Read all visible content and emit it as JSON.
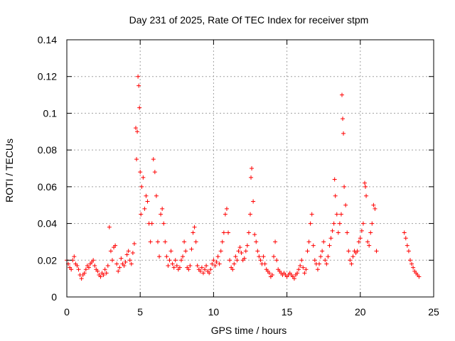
{
  "chart_data": {
    "type": "scatter",
    "title": "Day 231 of 2025, Rate Of TEC Index for receiver stpm",
    "xlabel": "GPS time / hours",
    "ylabel": "ROTI / TECUs",
    "xlim": [
      0,
      25
    ],
    "ylim": [
      0,
      0.14
    ],
    "xticks": [
      0,
      5,
      10,
      15,
      20,
      25
    ],
    "yticks": [
      0,
      0.02,
      0.04,
      0.06,
      0.08,
      0.1,
      0.12,
      0.14
    ],
    "xtick_labels": [
      "0",
      "5",
      "10",
      "15",
      "20",
      "25"
    ],
    "ytick_labels": [
      "0",
      "0.02",
      "0.04",
      "0.06",
      "0.08",
      "0.1",
      "0.12",
      "0.14"
    ],
    "grid": true,
    "marker": "plus",
    "color": "#ff0000",
    "series": [
      {
        "values_xy": [
          [
            0.0,
            0.02
          ],
          [
            0.1,
            0.018
          ],
          [
            0.2,
            0.016
          ],
          [
            0.3,
            0.015
          ],
          [
            0.4,
            0.02
          ],
          [
            0.5,
            0.022
          ],
          [
            0.6,
            0.018
          ],
          [
            0.7,
            0.017
          ],
          [
            0.8,
            0.015
          ],
          [
            0.9,
            0.012
          ],
          [
            1.0,
            0.01
          ],
          [
            1.1,
            0.012
          ],
          [
            1.2,
            0.013
          ],
          [
            1.3,
            0.015
          ],
          [
            1.4,
            0.017
          ],
          [
            1.5,
            0.016
          ],
          [
            1.6,
            0.018
          ],
          [
            1.7,
            0.019
          ],
          [
            1.8,
            0.02
          ],
          [
            1.9,
            0.017
          ],
          [
            2.0,
            0.015
          ],
          [
            2.1,
            0.014
          ],
          [
            2.2,
            0.012
          ],
          [
            2.3,
            0.011
          ],
          [
            2.4,
            0.013
          ],
          [
            2.5,
            0.012
          ],
          [
            2.6,
            0.015
          ],
          [
            2.7,
            0.013
          ],
          [
            2.8,
            0.017
          ],
          [
            2.9,
            0.038
          ],
          [
            3.0,
            0.025
          ],
          [
            3.1,
            0.02
          ],
          [
            3.2,
            0.027
          ],
          [
            3.3,
            0.028
          ],
          [
            3.4,
            0.018
          ],
          [
            3.5,
            0.014
          ],
          [
            3.6,
            0.016
          ],
          [
            3.7,
            0.021
          ],
          [
            3.8,
            0.018
          ],
          [
            3.9,
            0.017
          ],
          [
            4.0,
            0.019
          ],
          [
            4.1,
            0.023
          ],
          [
            4.2,
            0.025
          ],
          [
            4.3,
            0.02
          ],
          [
            4.4,
            0.018
          ],
          [
            4.5,
            0.024
          ],
          [
            4.6,
            0.029
          ],
          [
            4.7,
            0.092
          ],
          [
            4.75,
            0.075
          ],
          [
            4.8,
            0.09
          ],
          [
            4.85,
            0.12
          ],
          [
            4.9,
            0.115
          ],
          [
            4.95,
            0.103
          ],
          [
            5.0,
            0.068
          ],
          [
            5.05,
            0.045
          ],
          [
            5.1,
            0.06
          ],
          [
            5.2,
            0.065
          ],
          [
            5.3,
            0.048
          ],
          [
            5.4,
            0.055
          ],
          [
            5.5,
            0.052
          ],
          [
            5.6,
            0.04
          ],
          [
            5.7,
            0.03
          ],
          [
            5.8,
            0.04
          ],
          [
            5.9,
            0.075
          ],
          [
            6.0,
            0.068
          ],
          [
            6.1,
            0.055
          ],
          [
            6.2,
            0.03
          ],
          [
            6.3,
            0.022
          ],
          [
            6.4,
            0.045
          ],
          [
            6.5,
            0.048
          ],
          [
            6.6,
            0.04
          ],
          [
            6.7,
            0.03
          ],
          [
            6.8,
            0.022
          ],
          [
            6.9,
            0.017
          ],
          [
            7.0,
            0.02
          ],
          [
            7.1,
            0.025
          ],
          [
            7.2,
            0.018
          ],
          [
            7.3,
            0.016
          ],
          [
            7.4,
            0.02
          ],
          [
            7.5,
            0.017
          ],
          [
            7.6,
            0.015
          ],
          [
            7.7,
            0.016
          ],
          [
            7.8,
            0.02
          ],
          [
            7.9,
            0.022
          ],
          [
            8.0,
            0.03
          ],
          [
            8.1,
            0.025
          ],
          [
            8.2,
            0.016
          ],
          [
            8.3,
            0.015
          ],
          [
            8.4,
            0.017
          ],
          [
            8.5,
            0.026
          ],
          [
            8.6,
            0.035
          ],
          [
            8.7,
            0.038
          ],
          [
            8.8,
            0.03
          ],
          [
            8.9,
            0.017
          ],
          [
            9.0,
            0.015
          ],
          [
            9.1,
            0.014
          ],
          [
            9.2,
            0.016
          ],
          [
            9.3,
            0.013
          ],
          [
            9.4,
            0.015
          ],
          [
            9.5,
            0.017
          ],
          [
            9.6,
            0.014
          ],
          [
            9.7,
            0.013
          ],
          [
            9.8,
            0.015
          ],
          [
            9.9,
            0.018
          ],
          [
            10.0,
            0.02
          ],
          [
            10.1,
            0.017
          ],
          [
            10.2,
            0.019
          ],
          [
            10.3,
            0.022
          ],
          [
            10.4,
            0.018
          ],
          [
            10.5,
            0.025
          ],
          [
            10.6,
            0.03
          ],
          [
            10.7,
            0.035
          ],
          [
            10.8,
            0.045
          ],
          [
            10.9,
            0.048
          ],
          [
            11.0,
            0.035
          ],
          [
            11.1,
            0.02
          ],
          [
            11.2,
            0.016
          ],
          [
            11.3,
            0.015
          ],
          [
            11.4,
            0.018
          ],
          [
            11.5,
            0.022
          ],
          [
            11.6,
            0.02
          ],
          [
            11.7,
            0.025
          ],
          [
            11.8,
            0.027
          ],
          [
            11.9,
            0.024
          ],
          [
            12.0,
            0.02
          ],
          [
            12.1,
            0.021
          ],
          [
            12.2,
            0.025
          ],
          [
            12.3,
            0.028
          ],
          [
            12.4,
            0.035
          ],
          [
            12.5,
            0.045
          ],
          [
            12.55,
            0.065
          ],
          [
            12.6,
            0.07
          ],
          [
            12.7,
            0.052
          ],
          [
            12.8,
            0.034
          ],
          [
            12.9,
            0.03
          ],
          [
            13.0,
            0.025
          ],
          [
            13.1,
            0.022
          ],
          [
            13.2,
            0.02
          ],
          [
            13.3,
            0.018
          ],
          [
            13.4,
            0.022
          ],
          [
            13.5,
            0.018
          ],
          [
            13.6,
            0.015
          ],
          [
            13.7,
            0.014
          ],
          [
            13.8,
            0.013
          ],
          [
            13.9,
            0.011
          ],
          [
            14.0,
            0.012
          ],
          [
            14.1,
            0.022
          ],
          [
            14.2,
            0.03
          ],
          [
            14.3,
            0.02
          ],
          [
            14.4,
            0.015
          ],
          [
            14.5,
            0.014
          ],
          [
            14.6,
            0.013
          ],
          [
            14.7,
            0.012
          ],
          [
            14.8,
            0.013
          ],
          [
            14.9,
            0.012
          ],
          [
            15.0,
            0.011
          ],
          [
            15.1,
            0.012
          ],
          [
            15.2,
            0.013
          ],
          [
            15.3,
            0.012
          ],
          [
            15.4,
            0.011
          ],
          [
            15.5,
            0.01
          ],
          [
            15.6,
            0.012
          ],
          [
            15.7,
            0.013
          ],
          [
            15.8,
            0.015
          ],
          [
            15.9,
            0.017
          ],
          [
            16.0,
            0.02
          ],
          [
            16.1,
            0.016
          ],
          [
            16.2,
            0.013
          ],
          [
            16.3,
            0.015
          ],
          [
            16.4,
            0.025
          ],
          [
            16.5,
            0.03
          ],
          [
            16.6,
            0.04
          ],
          [
            16.7,
            0.045
          ],
          [
            16.8,
            0.028
          ],
          [
            16.9,
            0.02
          ],
          [
            17.0,
            0.018
          ],
          [
            17.1,
            0.015
          ],
          [
            17.2,
            0.018
          ],
          [
            17.3,
            0.022
          ],
          [
            17.4,
            0.025
          ],
          [
            17.5,
            0.03
          ],
          [
            17.6,
            0.02
          ],
          [
            17.7,
            0.018
          ],
          [
            17.8,
            0.022
          ],
          [
            17.9,
            0.028
          ],
          [
            18.0,
            0.032
          ],
          [
            18.1,
            0.036
          ],
          [
            18.2,
            0.04
          ],
          [
            18.25,
            0.064
          ],
          [
            18.3,
            0.055
          ],
          [
            18.4,
            0.045
          ],
          [
            18.5,
            0.035
          ],
          [
            18.6,
            0.04
          ],
          [
            18.7,
            0.045
          ],
          [
            18.75,
            0.11
          ],
          [
            18.8,
            0.097
          ],
          [
            18.85,
            0.089
          ],
          [
            18.9,
            0.06
          ],
          [
            19.0,
            0.05
          ],
          [
            19.1,
            0.035
          ],
          [
            19.2,
            0.025
          ],
          [
            19.3,
            0.02
          ],
          [
            19.4,
            0.018
          ],
          [
            19.5,
            0.022
          ],
          [
            19.6,
            0.025
          ],
          [
            19.7,
            0.024
          ],
          [
            19.8,
            0.025
          ],
          [
            19.9,
            0.03
          ],
          [
            20.0,
            0.032
          ],
          [
            20.1,
            0.036
          ],
          [
            20.2,
            0.04
          ],
          [
            20.3,
            0.062
          ],
          [
            20.35,
            0.06
          ],
          [
            20.4,
            0.055
          ],
          [
            20.5,
            0.03
          ],
          [
            20.6,
            0.028
          ],
          [
            20.7,
            0.035
          ],
          [
            20.8,
            0.04
          ],
          [
            20.9,
            0.05
          ],
          [
            21.0,
            0.048
          ],
          [
            21.1,
            0.025
          ],
          [
            23.0,
            0.035
          ],
          [
            23.1,
            0.032
          ],
          [
            23.2,
            0.028
          ],
          [
            23.3,
            0.025
          ],
          [
            23.4,
            0.02
          ],
          [
            23.5,
            0.018
          ],
          [
            23.6,
            0.016
          ],
          [
            23.7,
            0.014
          ],
          [
            23.8,
            0.013
          ],
          [
            23.9,
            0.012
          ],
          [
            24.0,
            0.011
          ]
        ]
      }
    ]
  }
}
